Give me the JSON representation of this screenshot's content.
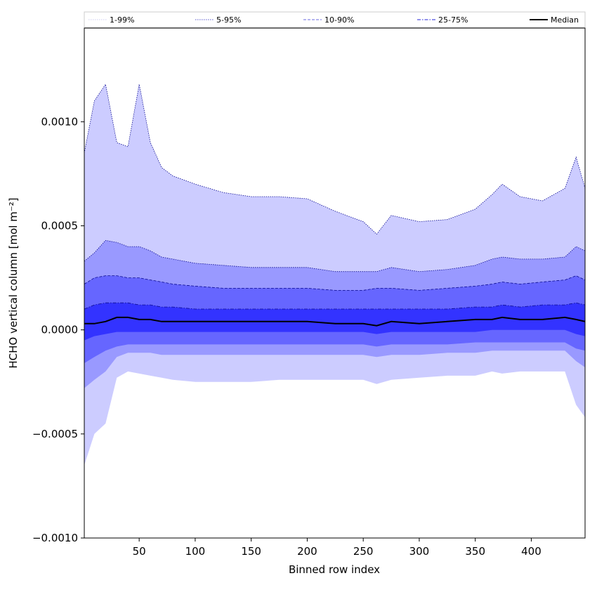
{
  "chart_data": {
    "type": "area",
    "title": "",
    "xlabel": "Binned row index",
    "ylabel": "HCHO vertical column [mol m⁻²]",
    "xlim": [
      1,
      448
    ],
    "ylim": [
      -0.001,
      0.00145
    ],
    "x_ticks": [
      50,
      100,
      150,
      200,
      250,
      300,
      350,
      400
    ],
    "x_tick_labels": [
      "50",
      "100",
      "150",
      "200",
      "250",
      "300",
      "350",
      "400"
    ],
    "y_ticks": [
      -0.001,
      -0.0005,
      0.0,
      0.0005,
      0.001
    ],
    "y_tick_labels": [
      "−0.0010",
      "−0.0005",
      "0.0000",
      "0.0005",
      "0.0010"
    ],
    "grid": false,
    "legend_position": "top, above plot (horizontal strip)",
    "legend": [
      {
        "label": "1-99%",
        "style": "dotted",
        "color": "#d8d8f4"
      },
      {
        "label": "5-95%",
        "style": "dotted",
        "color": "#7a7ad8"
      },
      {
        "label": "10-90%",
        "style": "dashed",
        "color": "#8888e8"
      },
      {
        "label": "25-75%",
        "style": "dashdot",
        "color": "#5050e0"
      },
      {
        "label": "Median",
        "style": "solid",
        "color": "#000000"
      }
    ],
    "x_sample": [
      1,
      10,
      20,
      30,
      40,
      50,
      60,
      70,
      80,
      100,
      125,
      150,
      175,
      200,
      225,
      250,
      262,
      275,
      300,
      325,
      350,
      365,
      374,
      390,
      410,
      430,
      440,
      448
    ],
    "series": [
      {
        "name": "1-99%",
        "color": "#ccccff",
        "upper": [
          0.00085,
          0.0011,
          0.00118,
          0.0009,
          0.00088,
          0.00118,
          0.0009,
          0.00078,
          0.00074,
          0.0007,
          0.00066,
          0.00064,
          0.00064,
          0.00063,
          0.00057,
          0.00052,
          0.00046,
          0.00055,
          0.00052,
          0.00053,
          0.00058,
          0.00065,
          0.0007,
          0.00064,
          0.00062,
          0.00068,
          0.00083,
          0.00068
        ],
        "lower": [
          -0.00065,
          -0.0005,
          -0.00045,
          -0.00023,
          -0.0002,
          -0.00021,
          -0.00022,
          -0.00023,
          -0.00024,
          -0.00025,
          -0.00025,
          -0.00025,
          -0.00024,
          -0.00024,
          -0.00024,
          -0.00024,
          -0.00026,
          -0.00024,
          -0.00023,
          -0.00022,
          -0.00022,
          -0.0002,
          -0.00021,
          -0.0002,
          -0.0002,
          -0.0002,
          -0.00036,
          -0.00042
        ]
      },
      {
        "name": "5-95%",
        "color": "#9999ff",
        "upper": [
          0.00033,
          0.00037,
          0.00043,
          0.00042,
          0.0004,
          0.0004,
          0.00038,
          0.00035,
          0.00034,
          0.00032,
          0.00031,
          0.0003,
          0.0003,
          0.0003,
          0.00028,
          0.00028,
          0.00028,
          0.0003,
          0.00028,
          0.00029,
          0.00031,
          0.00034,
          0.00035,
          0.00034,
          0.00034,
          0.00035,
          0.0004,
          0.00038
        ],
        "lower": [
          -0.00028,
          -0.00024,
          -0.0002,
          -0.00013,
          -0.00011,
          -0.00011,
          -0.00011,
          -0.00012,
          -0.00012,
          -0.00012,
          -0.00012,
          -0.00012,
          -0.00012,
          -0.00012,
          -0.00012,
          -0.00012,
          -0.00013,
          -0.00012,
          -0.00012,
          -0.00011,
          -0.00011,
          -0.0001,
          -0.0001,
          -0.0001,
          -0.0001,
          -0.0001,
          -0.00015,
          -0.00018
        ]
      },
      {
        "name": "10-90%",
        "color": "#6666ff",
        "upper": [
          0.00022,
          0.00025,
          0.00026,
          0.00026,
          0.00025,
          0.00025,
          0.00024,
          0.00023,
          0.00022,
          0.00021,
          0.0002,
          0.0002,
          0.0002,
          0.0002,
          0.00019,
          0.00019,
          0.0002,
          0.0002,
          0.00019,
          0.0002,
          0.00021,
          0.00022,
          0.00023,
          0.00022,
          0.00023,
          0.00024,
          0.00026,
          0.00024
        ],
        "lower": [
          -0.00016,
          -0.00013,
          -0.0001,
          -8e-05,
          -7e-05,
          -7e-05,
          -7e-05,
          -7e-05,
          -7e-05,
          -7e-05,
          -7e-05,
          -7e-05,
          -7e-05,
          -7e-05,
          -7e-05,
          -7e-05,
          -8e-05,
          -7e-05,
          -7e-05,
          -7e-05,
          -6e-05,
          -6e-05,
          -6e-05,
          -6e-05,
          -6e-05,
          -6e-05,
          -9e-05,
          -0.0001
        ]
      },
      {
        "name": "25-75%",
        "color": "#3333ff",
        "upper": [
          0.0001,
          0.00012,
          0.00013,
          0.00013,
          0.00013,
          0.00012,
          0.00012,
          0.00011,
          0.00011,
          0.0001,
          0.0001,
          0.0001,
          0.0001,
          0.0001,
          0.0001,
          0.0001,
          0.0001,
          0.0001,
          0.0001,
          0.0001,
          0.00011,
          0.00011,
          0.00012,
          0.00011,
          0.00012,
          0.00012,
          0.00013,
          0.00012
        ],
        "lower": [
          -5e-05,
          -3e-05,
          -2e-05,
          -1e-05,
          -1e-05,
          -1e-05,
          -1e-05,
          -1e-05,
          -1e-05,
          -1e-05,
          -1e-05,
          -1e-05,
          -1e-05,
          -1e-05,
          -1e-05,
          -1e-05,
          -2e-05,
          -1e-05,
          -1e-05,
          -1e-05,
          -1e-05,
          0.0,
          0.0,
          0.0,
          0.0,
          0.0,
          -2e-05,
          -3e-05
        ]
      },
      {
        "name": "Median",
        "color": "#000000",
        "values": [
          3e-05,
          3e-05,
          4e-05,
          6e-05,
          6e-05,
          5e-05,
          5e-05,
          4e-05,
          4e-05,
          4e-05,
          4e-05,
          4e-05,
          4e-05,
          4e-05,
          3e-05,
          3e-05,
          2e-05,
          4e-05,
          3e-05,
          4e-05,
          5e-05,
          5e-05,
          6e-05,
          5e-05,
          5e-05,
          6e-05,
          5e-05,
          4e-05
        ]
      }
    ]
  }
}
